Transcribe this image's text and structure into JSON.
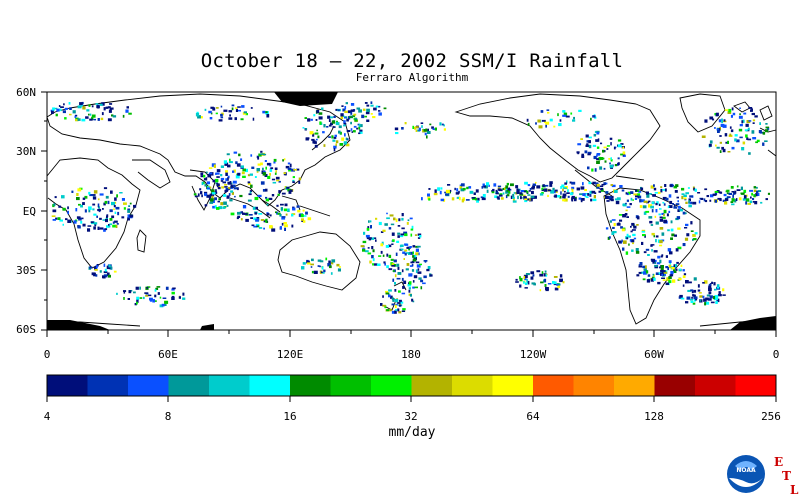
{
  "title": "October 18 – 22, 2002 SSM/I Rainfall",
  "subtitle": "Ferraro Algorithm",
  "map": {
    "lat_labels": [
      "60N",
      "30N",
      "EQ",
      "30S",
      "60S"
    ],
    "lon_labels": [
      "0",
      "60E",
      "120E",
      "180",
      "120W",
      "60W",
      "0"
    ]
  },
  "colorbar": {
    "colors": [
      "#000e7a",
      "#0032b4",
      "#0a50ff",
      "#00999a",
      "#00cccc",
      "#00ffff",
      "#008b00",
      "#00bf00",
      "#00f000",
      "#b3b300",
      "#dcdc00",
      "#ffff00",
      "#ff5a00",
      "#ff8400",
      "#ffaa00",
      "#990000",
      "#cc0000",
      "#ff0000"
    ],
    "tick_labels": [
      "4",
      "8",
      "16",
      "32",
      "64",
      "128",
      "256"
    ],
    "unit": "mm/day"
  },
  "logo": {
    "name": "NOAA",
    "letters": [
      "E",
      "T",
      "L"
    ]
  }
}
